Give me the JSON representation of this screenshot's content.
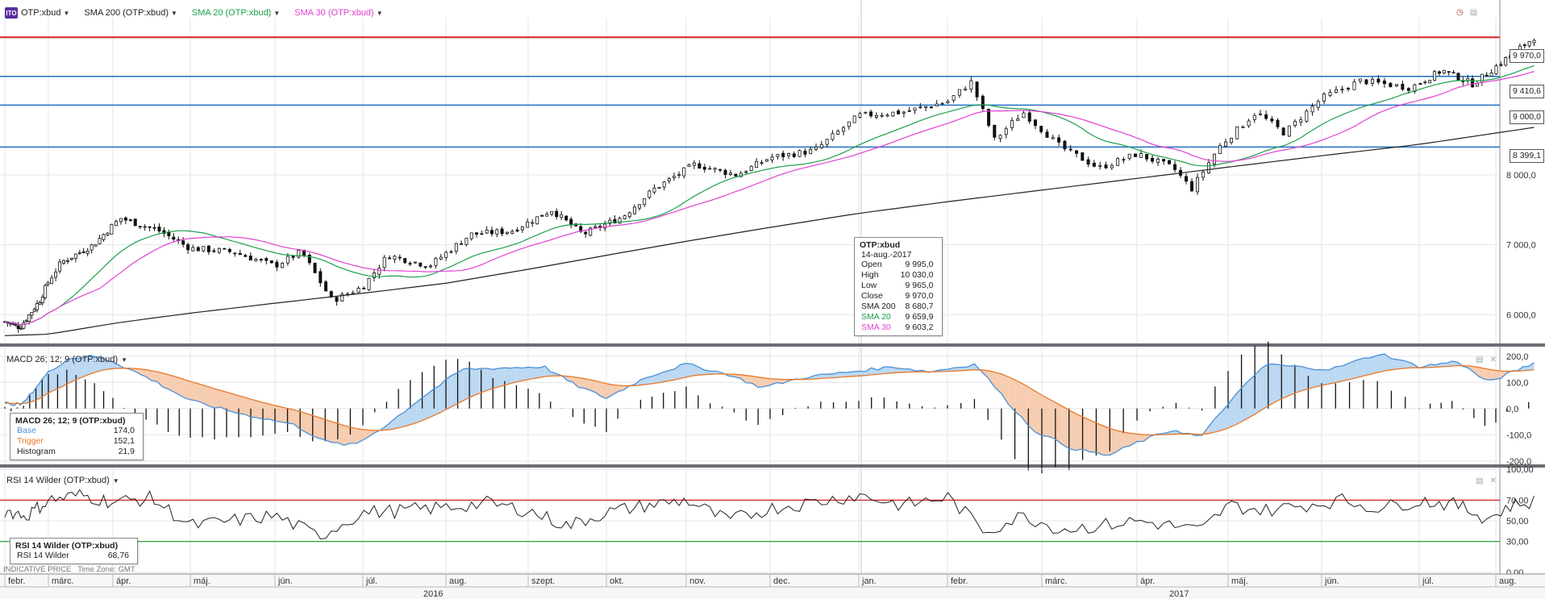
{
  "header": {
    "legend": [
      {
        "label": "OTP:xbud",
        "color": "#222222"
      },
      {
        "label": "SMA 200 (OTP:xbud)",
        "color": "#222222"
      },
      {
        "label": "SMA 20 (OTP:xbud)",
        "color": "#1aa04a"
      },
      {
        "label": "SMA 30 (OTP:xbud)",
        "color": "#e040d0"
      }
    ]
  },
  "colors": {
    "sma200": "#222222",
    "sma20": "#1aa04a",
    "sma30": "#e040d0",
    "macd_base": "#4a90d9",
    "macd_trigger": "#e8782a",
    "resistance": "#d42020",
    "support": "#1f6fc5",
    "rsi_upper": "#d42020",
    "rsi_lower": "#2aa040"
  },
  "chart_data": [
    {
      "type": "candlestick",
      "title": "OTP:xbud",
      "y_ticks": [
        "6 000,0",
        "7 000,0",
        "8 000,0"
      ],
      "ylim": [
        5600,
        10250
      ],
      "x_ticks": [
        "febr.",
        "márc.",
        "ápr.",
        "máj.",
        "jún.",
        "júl.",
        "aug.",
        "szept.",
        "okt.",
        "nov.",
        "dec.",
        "jan.",
        "febr.",
        "márc.",
        "ápr.",
        "máj.",
        "jún.",
        "júl.",
        "aug."
      ],
      "years": [
        "2016",
        "2017"
      ],
      "horizontal_lines": [
        {
          "value": 9970.0,
          "label": "9 970,0",
          "kind": "resistance"
        },
        {
          "value": 9410.6,
          "label": "9 410,6",
          "kind": "support"
        },
        {
          "value": 9000.0,
          "label": "9 000,0",
          "kind": "support"
        },
        {
          "value": 8399.1,
          "label": "8 399,1",
          "kind": "support"
        }
      ],
      "close_anchors": [
        {
          "month": 0.0,
          "close": 5900
        },
        {
          "month": 0.35,
          "close": 5820
        },
        {
          "month": 0.8,
          "close": 6200
        },
        {
          "month": 1.2,
          "close": 6750
        },
        {
          "month": 1.7,
          "close": 7000
        },
        {
          "month": 2.1,
          "close": 7380
        },
        {
          "month": 2.6,
          "close": 7200
        },
        {
          "month": 3.0,
          "close": 6950
        },
        {
          "month": 3.5,
          "close": 6900
        },
        {
          "month": 4.0,
          "close": 6700
        },
        {
          "month": 4.3,
          "close": 6900
        },
        {
          "month": 4.65,
          "close": 6200
        },
        {
          "month": 5.0,
          "close": 6400
        },
        {
          "month": 5.3,
          "close": 6850
        },
        {
          "month": 5.8,
          "close": 6700
        },
        {
          "month": 6.3,
          "close": 7150
        },
        {
          "month": 6.8,
          "close": 7200
        },
        {
          "month": 7.3,
          "close": 7500
        },
        {
          "month": 7.7,
          "close": 7150
        },
        {
          "month": 8.2,
          "close": 7400
        },
        {
          "month": 8.6,
          "close": 7800
        },
        {
          "month": 9.1,
          "close": 8150
        },
        {
          "month": 9.6,
          "close": 8000
        },
        {
          "month": 10.0,
          "close": 8250
        },
        {
          "month": 10.5,
          "close": 8350
        },
        {
          "month": 11.0,
          "close": 8850
        },
        {
          "month": 11.5,
          "close": 8900
        },
        {
          "month": 12.0,
          "close": 9050
        },
        {
          "month": 12.25,
          "close": 9330
        },
        {
          "month": 12.5,
          "close": 8500
        },
        {
          "month": 12.8,
          "close": 8900
        },
        {
          "month": 13.2,
          "close": 8400
        },
        {
          "month": 13.6,
          "close": 8100
        },
        {
          "month": 14.0,
          "close": 8300
        },
        {
          "month": 14.4,
          "close": 8100
        },
        {
          "month": 14.6,
          "close": 7800
        },
        {
          "month": 14.9,
          "close": 8400
        },
        {
          "month": 15.3,
          "close": 8900
        },
        {
          "month": 15.6,
          "close": 8600
        },
        {
          "month": 16.0,
          "close": 9100
        },
        {
          "month": 16.4,
          "close": 9350
        },
        {
          "month": 16.9,
          "close": 9250
        },
        {
          "month": 17.3,
          "close": 9500
        },
        {
          "month": 17.7,
          "close": 9300
        },
        {
          "month": 18.0,
          "close": 9550
        },
        {
          "month": 18.5,
          "close": 9970
        }
      ],
      "sma200_anchors": [
        {
          "month": 0.0,
          "value": 5700
        },
        {
          "month": 1.0,
          "value": 5720
        },
        {
          "month": 2.5,
          "value": 5950
        },
        {
          "month": 6.0,
          "value": 6450
        },
        {
          "month": 11.0,
          "value": 7450
        },
        {
          "month": 14.0,
          "value": 7950
        },
        {
          "month": 18.5,
          "value": 8680.7
        }
      ],
      "tooltip": {
        "title": "OTP:xbud",
        "date": "14-aug.-2017",
        "rows": [
          {
            "label": "Open",
            "value": "9 995,0",
            "color": "#222222"
          },
          {
            "label": "High",
            "value": "10 030,0",
            "color": "#222222"
          },
          {
            "label": "Low",
            "value": "9 965,0",
            "color": "#222222"
          },
          {
            "label": "Close",
            "value": "9 970,0",
            "color": "#222222"
          },
          {
            "label": "SMA 200",
            "value": "8 680,7",
            "color": "#222222"
          },
          {
            "label": "SMA 20",
            "value": "9 659,9",
            "color": "#1aa04a"
          },
          {
            "label": "SMA 30",
            "value": "9 603,2",
            "color": "#e040d0"
          }
        ]
      },
      "last_close": 9970.0
    },
    {
      "type": "line",
      "title": "MACD 26; 12; 9 (OTP:xbud)",
      "y_ticks": [
        "200,0",
        "100,0",
        "0,0",
        "-100,0",
        "-200,0"
      ],
      "ylim": [
        -210,
        230
      ],
      "series": [
        {
          "name": "Base",
          "color": "#4a90d9"
        },
        {
          "name": "Trigger",
          "color": "#e8782a"
        },
        {
          "name": "Histogram",
          "color": "#111111"
        }
      ],
      "base_anchors": [
        {
          "month": 0.0,
          "value": 20
        },
        {
          "month": 0.4,
          "value": 15
        },
        {
          "month": 0.9,
          "value": 120
        },
        {
          "month": 1.3,
          "value": 190
        },
        {
          "month": 1.7,
          "value": 200
        },
        {
          "month": 2.0,
          "value": 180
        },
        {
          "month": 2.5,
          "value": 110
        },
        {
          "month": 3.0,
          "value": 30
        },
        {
          "month": 3.6,
          "value": -20
        },
        {
          "month": 4.2,
          "value": -60
        },
        {
          "month": 4.6,
          "value": -130
        },
        {
          "month": 4.9,
          "value": -140
        },
        {
          "month": 5.3,
          "value": -60
        },
        {
          "month": 5.7,
          "value": 40
        },
        {
          "month": 6.2,
          "value": 150
        },
        {
          "month": 6.7,
          "value": 155
        },
        {
          "month": 7.2,
          "value": 160
        },
        {
          "month": 7.6,
          "value": 90
        },
        {
          "month": 8.0,
          "value": 40
        },
        {
          "month": 8.5,
          "value": 120
        },
        {
          "month": 9.0,
          "value": 170
        },
        {
          "month": 9.5,
          "value": 130
        },
        {
          "month": 9.9,
          "value": 80
        },
        {
          "month": 10.4,
          "value": 120
        },
        {
          "month": 10.9,
          "value": 140
        },
        {
          "month": 11.4,
          "value": 160
        },
        {
          "month": 11.8,
          "value": 140
        },
        {
          "month": 12.3,
          "value": 170
        },
        {
          "month": 12.6,
          "value": 40
        },
        {
          "month": 12.9,
          "value": -80
        },
        {
          "month": 13.3,
          "value": -150
        },
        {
          "month": 13.7,
          "value": -180
        },
        {
          "month": 14.0,
          "value": -130
        },
        {
          "month": 14.4,
          "value": -80
        },
        {
          "month": 14.7,
          "value": -110
        },
        {
          "month": 15.0,
          "value": 20
        },
        {
          "month": 15.4,
          "value": 170
        },
        {
          "month": 15.7,
          "value": 160
        },
        {
          "month": 16.1,
          "value": 150
        },
        {
          "month": 16.6,
          "value": 210
        },
        {
          "month": 17.0,
          "value": 160
        },
        {
          "month": 17.5,
          "value": 180
        },
        {
          "month": 17.9,
          "value": 100
        },
        {
          "month": 18.5,
          "value": 174
        }
      ],
      "tooltip": {
        "title": "MACD 26; 12; 9 (OTP:xbud)",
        "rows": [
          {
            "label": "Base",
            "value": "174,0",
            "color": "#4a90d9"
          },
          {
            "label": "Trigger",
            "value": "152,1",
            "color": "#e8782a"
          },
          {
            "label": "Histogram",
            "value": "21,9",
            "color": "#222222"
          }
        ]
      }
    },
    {
      "type": "line",
      "title": "RSI 14 Wilder (OTP:xbud)",
      "y_ticks": [
        "100,00",
        "70,00",
        "50,00",
        "30,00",
        "0,00"
      ],
      "ylim": [
        0,
        100
      ],
      "levels": [
        70,
        30
      ],
      "rsi_anchors": [
        {
          "month": 0.0,
          "value": 60
        },
        {
          "month": 0.5,
          "value": 55
        },
        {
          "month": 1.0,
          "value": 70
        },
        {
          "month": 1.5,
          "value": 75
        },
        {
          "month": 2.0,
          "value": 68
        },
        {
          "month": 2.5,
          "value": 72
        },
        {
          "month": 3.0,
          "value": 45
        },
        {
          "month": 3.5,
          "value": 50
        },
        {
          "month": 4.0,
          "value": 55
        },
        {
          "month": 4.5,
          "value": 35
        },
        {
          "month": 5.0,
          "value": 58
        },
        {
          "month": 5.5,
          "value": 60
        },
        {
          "month": 6.0,
          "value": 63
        },
        {
          "month": 6.5,
          "value": 67
        },
        {
          "month": 7.0,
          "value": 60
        },
        {
          "month": 7.5,
          "value": 45
        },
        {
          "month": 8.0,
          "value": 58
        },
        {
          "month": 8.5,
          "value": 65
        },
        {
          "month": 9.0,
          "value": 70
        },
        {
          "month": 9.5,
          "value": 50
        },
        {
          "month": 10.0,
          "value": 62
        },
        {
          "month": 10.5,
          "value": 68
        },
        {
          "month": 11.0,
          "value": 75
        },
        {
          "month": 11.5,
          "value": 65
        },
        {
          "month": 12.0,
          "value": 73
        },
        {
          "month": 12.4,
          "value": 40
        },
        {
          "month": 12.8,
          "value": 55
        },
        {
          "month": 13.2,
          "value": 42
        },
        {
          "month": 13.6,
          "value": 45
        },
        {
          "month": 14.0,
          "value": 50
        },
        {
          "month": 14.4,
          "value": 45
        },
        {
          "month": 14.7,
          "value": 40
        },
        {
          "month": 15.0,
          "value": 65
        },
        {
          "month": 15.4,
          "value": 60
        },
        {
          "month": 15.8,
          "value": 65
        },
        {
          "month": 16.2,
          "value": 70
        },
        {
          "month": 16.6,
          "value": 62
        },
        {
          "month": 17.0,
          "value": 70
        },
        {
          "month": 17.5,
          "value": 65
        },
        {
          "month": 17.9,
          "value": 52
        },
        {
          "month": 18.2,
          "value": 65
        },
        {
          "month": 18.5,
          "value": 68.76
        }
      ],
      "tooltip": {
        "title": "RSI 14 Wilder (OTP:xbud)",
        "rows": [
          {
            "label": "RSI 14 Wilder",
            "value": "68,76",
            "color": "#222222"
          }
        ]
      }
    }
  ],
  "footer": {
    "indicative": "INDICATIVE PRICE",
    "timezone": "Time Zone: GMT"
  }
}
